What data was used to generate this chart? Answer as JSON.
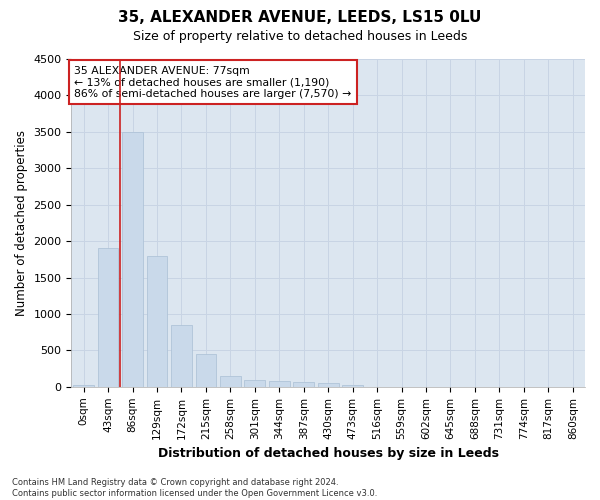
{
  "title": "35, ALEXANDER AVENUE, LEEDS, LS15 0LU",
  "subtitle": "Size of property relative to detached houses in Leeds",
  "xlabel": "Distribution of detached houses by size in Leeds",
  "ylabel": "Number of detached properties",
  "bar_labels": [
    "0sqm",
    "43sqm",
    "86sqm",
    "129sqm",
    "172sqm",
    "215sqm",
    "258sqm",
    "301sqm",
    "344sqm",
    "387sqm",
    "430sqm",
    "473sqm",
    "516sqm",
    "559sqm",
    "602sqm",
    "645sqm",
    "688sqm",
    "731sqm",
    "774sqm",
    "817sqm",
    "860sqm"
  ],
  "bar_values": [
    30,
    1900,
    3500,
    1800,
    850,
    450,
    155,
    100,
    75,
    65,
    50,
    30,
    0,
    0,
    0,
    0,
    0,
    0,
    0,
    0,
    0
  ],
  "bar_color": "#c9d9ea",
  "bar_edgecolor": "#b0c4d8",
  "highlight_line_color": "#cc2222",
  "annotation_text_line1": "35 ALEXANDER AVENUE: 77sqm",
  "annotation_text_line2": "← 13% of detached houses are smaller (1,190)",
  "annotation_text_line3": "86% of semi-detached houses are larger (7,570) →",
  "annotation_box_edgecolor": "#cc2222",
  "annotation_box_facecolor": "#ffffff",
  "ylim": [
    0,
    4500
  ],
  "yticks": [
    0,
    500,
    1000,
    1500,
    2000,
    2500,
    3000,
    3500,
    4000,
    4500
  ],
  "grid_color": "#c8d4e4",
  "plot_bg_color": "#dce6f0",
  "fig_bg_color": "#ffffff",
  "footer_text": "Contains HM Land Registry data © Crown copyright and database right 2024.\nContains public sector information licensed under the Open Government Licence v3.0.",
  "figsize": [
    6.0,
    5.0
  ],
  "dpi": 100
}
